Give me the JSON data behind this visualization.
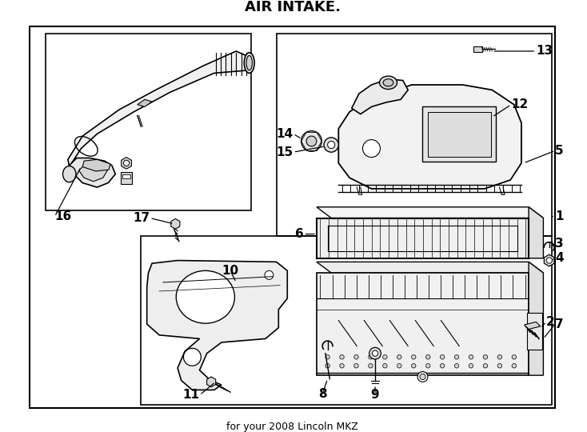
{
  "title": "AIR INTAKE.",
  "subtitle": "for your 2008 Lincoln MKZ",
  "bg_color": "#ffffff",
  "line_color": "#000000",
  "fig_width": 7.34,
  "fig_height": 5.4,
  "dpi": 100,
  "label_fontsize": 11
}
